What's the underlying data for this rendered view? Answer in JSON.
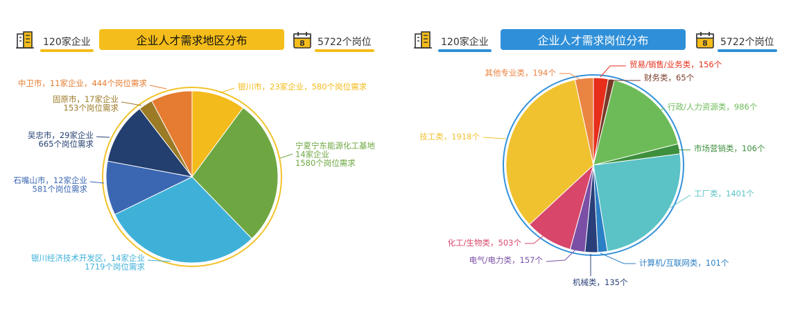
{
  "colors": {
    "left_accent": "#f4bd1b",
    "right_accent": "#2f8fd8",
    "left_ring": "#f1c22a",
    "right_ring": "#3391da"
  },
  "left_panel": {
    "companies": "120家企业",
    "title": "企业人才需求地区分布",
    "positions": "5722个岗位",
    "building_icon": "building-icon",
    "calendar_icon": "calendar-icon"
  },
  "right_panel": {
    "companies": "120家企业",
    "title": "企业人才需求岗位分布",
    "positions": "5722个岗位",
    "building_icon": "building-icon",
    "calendar_icon": "calendar-icon"
  },
  "chart_data": [
    {
      "type": "pie",
      "title": "企业人才需求地区分布",
      "slices": [
        {
          "name": "银川市",
          "companies": 23,
          "positions": 580,
          "color": "#f3bb1b",
          "label_lines": [
            "银川市，23家企业，580个岗位需求"
          ]
        },
        {
          "name": "宁夏宁东能源化工基地",
          "companies": 14,
          "positions": 1580,
          "color": "#6ea742",
          "label_lines": [
            "宁夏宁东能源化工基地",
            "14家企业",
            "1580个岗位需求"
          ]
        },
        {
          "name": "银川经济技术开发区",
          "companies": 14,
          "positions": 1719,
          "color": "#3fb1d8",
          "label_lines": [
            "银川经济技术开发区，14家企业",
            "1719个岗位需求"
          ]
        },
        {
          "name": "石嘴山市",
          "companies": 12,
          "positions": 581,
          "color": "#3b67b2",
          "label_lines": [
            "石嘴山市，12家企业",
            "581个岗位需求"
          ]
        },
        {
          "name": "吴忠市",
          "companies": 29,
          "positions": 665,
          "color": "#233f6f",
          "label_lines": [
            "吴忠市，29家企业",
            "665个岗位需求"
          ]
        },
        {
          "name": "固原市",
          "companies": 17,
          "positions": 153,
          "color": "#9c7b27",
          "label_lines": [
            "固原市，17家企业",
            "153个岗位需求"
          ]
        },
        {
          "name": "中卫市",
          "companies": 11,
          "positions": 444,
          "color": "#e57c31",
          "label_lines": [
            "中卫市，11家企业，444个岗位需求"
          ]
        }
      ]
    },
    {
      "type": "pie",
      "title": "企业人才需求岗位分布",
      "slices": [
        {
          "name": "贸易/销售/业务类",
          "value": 156,
          "color": "#e62e1b",
          "label_lines": [
            "贸易/销售/业务类，156个"
          ]
        },
        {
          "name": "财务类",
          "value": 65,
          "color": "#7a3a28",
          "label_lines": [
            "财务类，65个"
          ]
        },
        {
          "name": "行政/人力资源类",
          "value": 986,
          "color": "#6dbb58",
          "label_lines": [
            "行政/人力资源类，986个"
          ]
        },
        {
          "name": "市场营销类",
          "value": 106,
          "color": "#3e8f3e",
          "label_lines": [
            "市场营销类，106个"
          ]
        },
        {
          "name": "工厂类",
          "value": 1401,
          "color": "#5bc2c6",
          "label_lines": [
            "工厂类，1401个"
          ]
        },
        {
          "name": "计算机/互联网类",
          "value": 101,
          "color": "#2b7fc4",
          "label_lines": [
            "计算机/互联网类，101个"
          ]
        },
        {
          "name": "机械类",
          "value": 135,
          "color": "#2a3f7a",
          "label_lines": [
            "机械类，135个"
          ]
        },
        {
          "name": "电气/电力类",
          "value": 157,
          "color": "#7b4fa5",
          "label_lines": [
            "电气/电力类，157个"
          ]
        },
        {
          "name": "化工/生物类",
          "value": 503,
          "color": "#d8476a",
          "label_lines": [
            "化工/生物类，503个"
          ]
        },
        {
          "name": "技工类",
          "value": 1918,
          "color": "#f0c230",
          "label_lines": [
            "技工类，1918个"
          ]
        },
        {
          "name": "其他专业类",
          "value": 194,
          "color": "#ea8443",
          "label_lines": [
            "其他专业类，194个"
          ]
        }
      ]
    }
  ]
}
